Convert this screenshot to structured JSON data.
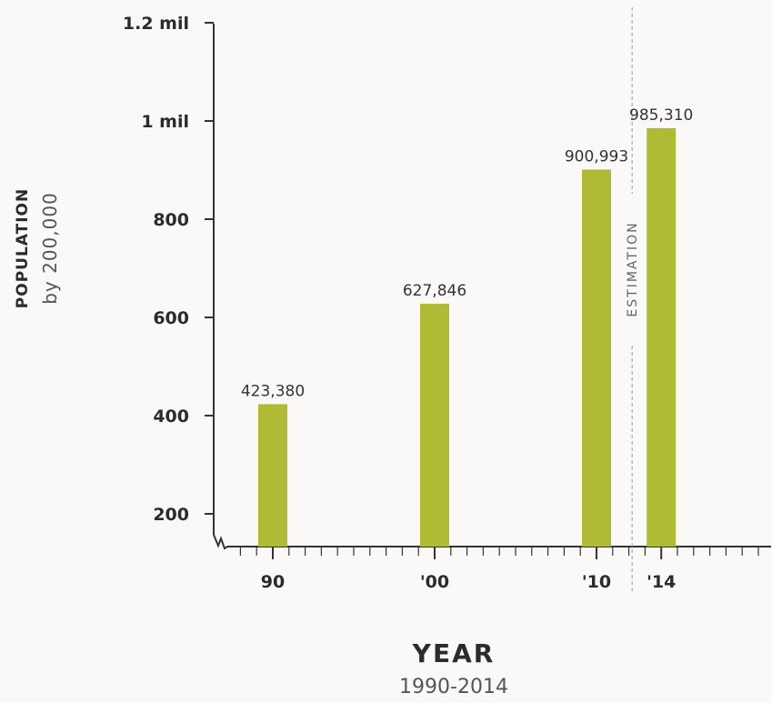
{
  "colors": {
    "bar": "#afbb35",
    "axis": "#333333",
    "estimation_line": "#aaaaaa",
    "background": "#faf9f7"
  },
  "chart_data": {
    "type": "bar",
    "categories": [
      "90",
      "'00",
      "'10",
      "'14"
    ],
    "x_years": [
      1990,
      2000,
      2010,
      2014
    ],
    "values": [
      423380,
      627846,
      900993,
      985310
    ],
    "value_labels": [
      "423,380",
      "627,846",
      "900,993",
      "985,310"
    ],
    "ylabel": "POPULATION",
    "ylabel_sub": "by 200,000",
    "xlabel": "YEAR",
    "xlabel_sub": "1990-2014",
    "ylim": [
      163000,
      1200000
    ],
    "yticks": [
      {
        "value": 200000,
        "label": "200"
      },
      {
        "value": 400000,
        "label": "400"
      },
      {
        "value": 600000,
        "label": "600"
      },
      {
        "value": 800000,
        "label": "800"
      },
      {
        "value": 1000000,
        "label": "1 mil"
      },
      {
        "value": 1200000,
        "label": "1.2 mil"
      }
    ],
    "xlim": [
      1987,
      2020
    ],
    "annotation": {
      "label": "ESTIMATION",
      "x_year": 2012.2
    },
    "grid": false,
    "axis_break": true
  }
}
